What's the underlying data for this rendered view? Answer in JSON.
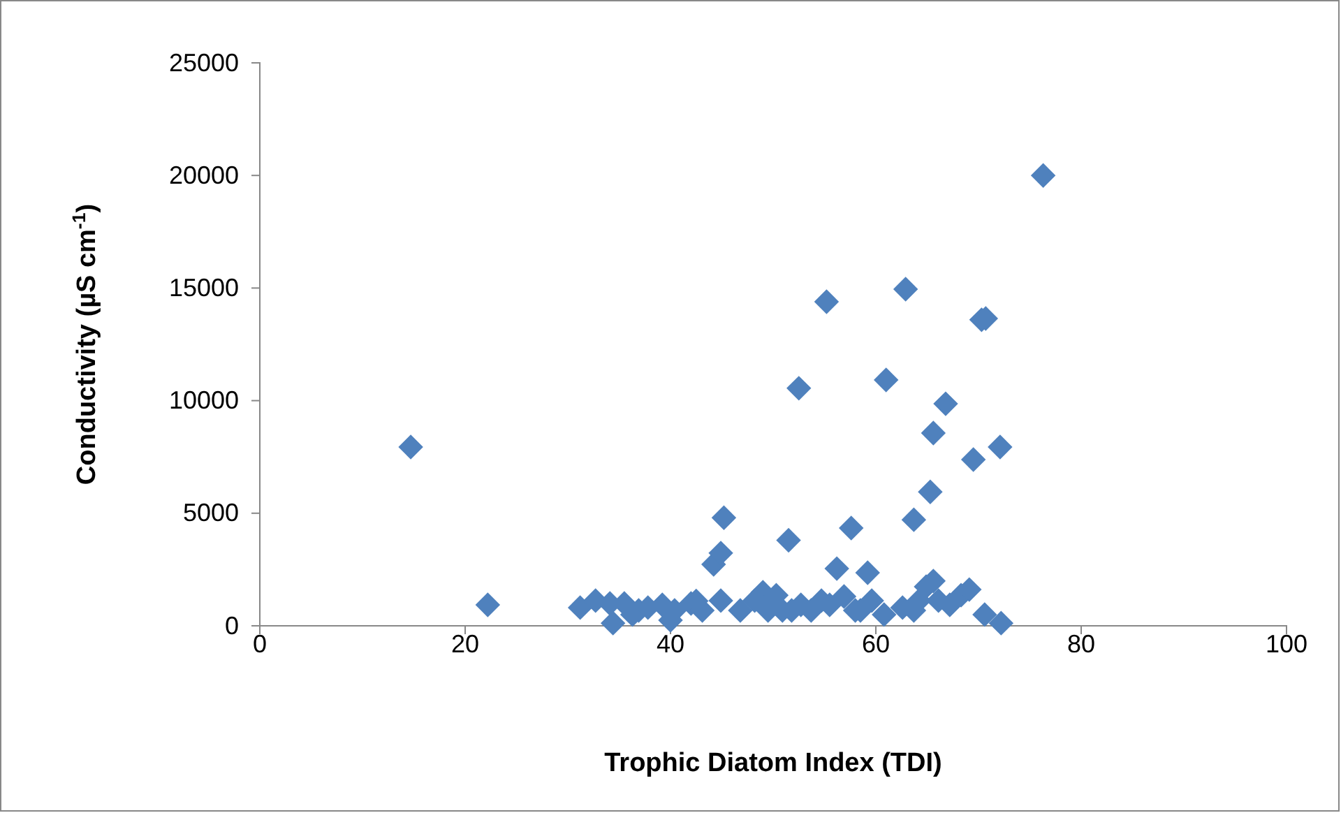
{
  "chart_data": {
    "type": "scatter",
    "xlabel": "Trophic Diatom Index (TDI)",
    "ylabel": "Conductivity (µS cm$^{-1}$)",
    "marker": "diamond",
    "grid": false,
    "xlim": [
      0,
      100
    ],
    "xticks": [
      0,
      20,
      40,
      60,
      80,
      100
    ],
    "ylim": [
      0,
      25000
    ],
    "yticks": [
      0,
      5000,
      10000,
      15000,
      20000,
      25000
    ],
    "series": [
      {
        "color": "#4f81bd",
        "x": [
          14.7,
          22.2,
          31.2,
          32.7,
          34.1,
          34.4,
          35.5,
          36.3,
          36.9,
          37.8,
          39.2,
          40.0,
          40.4,
          42.0,
          43.1,
          44.2,
          44.9,
          45.2,
          44.9,
          46.8,
          48.2,
          49.0,
          49.5,
          50.3,
          50.9,
          51.5,
          52.5,
          52.7,
          53.7,
          54.7,
          55.2,
          55.5,
          56.2,
          56.9,
          57.6,
          59.2,
          58.5,
          59.6,
          60.8,
          61.0,
          62.6,
          62.9,
          63.7,
          63.7,
          64.2,
          64.9,
          65.3,
          65.6,
          65.6,
          66.1,
          66.8,
          67.2,
          68.3,
          69.1,
          69.5,
          70.3,
          70.7,
          70.6,
          72.1,
          72.2,
          76.3,
          51.8,
          58.0,
          42.5
        ],
        "values": [
          7940,
          930,
          810,
          1120,
          990,
          120,
          990,
          500,
          680,
          810,
          930,
          250,
          680,
          990,
          680,
          2730,
          3230,
          4800,
          1120,
          680,
          1120,
          1490,
          680,
          1360,
          680,
          3800,
          10550,
          930,
          680,
          1120,
          14390,
          930,
          2540,
          1300,
          4340,
          2360,
          680,
          1120,
          500,
          10920,
          810,
          14950,
          4710,
          680,
          1120,
          1740,
          5950,
          1990,
          8560,
          1120,
          9860,
          930,
          1360,
          1610,
          7380,
          13590,
          13650,
          500,
          7940,
          120,
          20000,
          680,
          680,
          1100
        ]
      }
    ]
  }
}
